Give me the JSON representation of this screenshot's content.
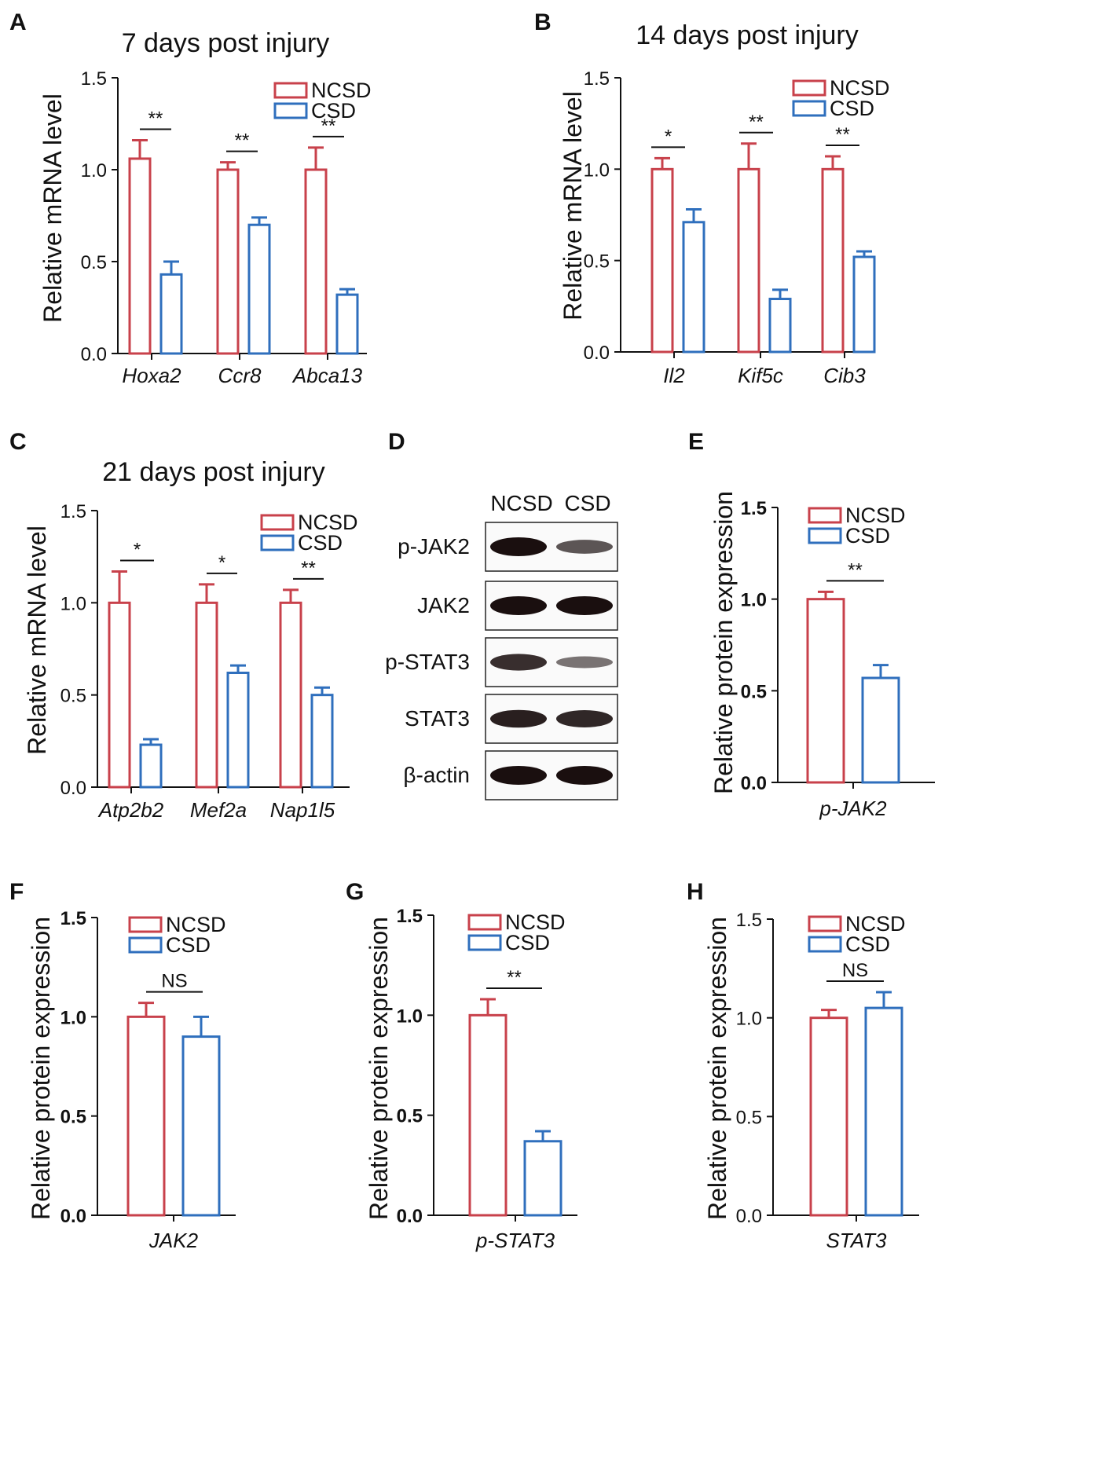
{
  "colors": {
    "ncsd": "#c8414b",
    "csd": "#2f6fbd",
    "axis": "#111111",
    "band": "#1a0f0f"
  },
  "chart_data": [
    {
      "letter": "A",
      "type": "bar",
      "title": "7 days post injury",
      "ylabel": "Relative mRNA level",
      "ylim": [
        0,
        1.5
      ],
      "yticks": [
        "0.0",
        "0.5",
        "1.0",
        "1.5"
      ],
      "tick_bold": false,
      "categories": [
        "Hoxa2",
        "Ccr8",
        "Abca13"
      ],
      "series": [
        {
          "name": "NCSD",
          "values": [
            1.06,
            1.0,
            1.0
          ],
          "errors": [
            0.1,
            0.04,
            0.12
          ]
        },
        {
          "name": "CSD",
          "values": [
            0.43,
            0.7,
            0.32
          ],
          "errors": [
            0.07,
            0.04,
            0.03
          ]
        }
      ],
      "significance": [
        "**",
        "**",
        "**"
      ],
      "legend": "top-right"
    },
    {
      "letter": "B",
      "type": "bar",
      "title": "14 days post injury",
      "ylabel": "Relative mRNA level",
      "ylim": [
        0,
        1.5
      ],
      "yticks": [
        "0.0",
        "0.5",
        "1.0",
        "1.5"
      ],
      "tick_bold": false,
      "categories": [
        "Il2",
        "Kif5c",
        "Cib3"
      ],
      "series": [
        {
          "name": "NCSD",
          "values": [
            1.0,
            1.0,
            1.0
          ],
          "errors": [
            0.06,
            0.14,
            0.07
          ]
        },
        {
          "name": "CSD",
          "values": [
            0.71,
            0.29,
            0.52
          ],
          "errors": [
            0.07,
            0.05,
            0.03
          ]
        }
      ],
      "significance": [
        "*",
        "**",
        "**"
      ],
      "legend": "top-right"
    },
    {
      "letter": "C",
      "type": "bar",
      "title": "21 days post injury",
      "ylabel": "Relative mRNA level",
      "ylim": [
        0,
        1.5
      ],
      "yticks": [
        "0.0",
        "0.5",
        "1.0",
        "1.5"
      ],
      "tick_bold": false,
      "categories": [
        "Atp2b2",
        "Mef2a",
        "Nap1l5"
      ],
      "series": [
        {
          "name": "NCSD",
          "values": [
            1.0,
            1.0,
            1.0
          ],
          "errors": [
            0.17,
            0.1,
            0.07
          ]
        },
        {
          "name": "CSD",
          "values": [
            0.23,
            0.62,
            0.5
          ],
          "errors": [
            0.03,
            0.04,
            0.04
          ]
        }
      ],
      "significance": [
        "*",
        "*",
        "**"
      ],
      "legend": "top-right"
    },
    {
      "letter": "E",
      "type": "bar",
      "title": "",
      "ylabel": "Relative protein expression",
      "ylim": [
        0,
        1.5
      ],
      "yticks": [
        "0.0",
        "0.5",
        "1.0",
        "1.5"
      ],
      "tick_bold": true,
      "categories": [
        "p-JAK2"
      ],
      "series": [
        {
          "name": "NCSD",
          "values": [
            1.0
          ],
          "errors": [
            0.04
          ]
        },
        {
          "name": "CSD",
          "values": [
            0.57
          ],
          "errors": [
            0.07
          ]
        }
      ],
      "significance": [
        "**"
      ],
      "legend": "top-right"
    },
    {
      "letter": "F",
      "type": "bar",
      "title": "",
      "ylabel": "Relative protein expression",
      "ylim": [
        0,
        1.5
      ],
      "yticks": [
        "0.0",
        "0.5",
        "1.0",
        "1.5"
      ],
      "tick_bold": true,
      "categories": [
        "JAK2"
      ],
      "series": [
        {
          "name": "NCSD",
          "values": [
            1.0
          ],
          "errors": [
            0.07
          ]
        },
        {
          "name": "CSD",
          "values": [
            0.9
          ],
          "errors": [
            0.1
          ]
        }
      ],
      "significance": [
        "NS"
      ],
      "legend": "top-right"
    },
    {
      "letter": "G",
      "type": "bar",
      "title": "",
      "ylabel": "Relative protein expression",
      "ylim": [
        0,
        1.5
      ],
      "yticks": [
        "0.0",
        "0.5",
        "1.0",
        "1.5"
      ],
      "tick_bold": true,
      "categories": [
        "p-STAT3"
      ],
      "series": [
        {
          "name": "NCSD",
          "values": [
            1.0
          ],
          "errors": [
            0.08
          ]
        },
        {
          "name": "CSD",
          "values": [
            0.37
          ],
          "errors": [
            0.05
          ]
        }
      ],
      "significance": [
        "**"
      ],
      "legend": "top-right"
    },
    {
      "letter": "H",
      "type": "bar",
      "title": "",
      "ylabel": "Relative protein expression",
      "ylim": [
        0,
        1.5
      ],
      "yticks": [
        "0.0",
        "0.5",
        "1.0",
        "1.5"
      ],
      "tick_bold": false,
      "categories": [
        "STAT3"
      ],
      "series": [
        {
          "name": "NCSD",
          "values": [
            1.0
          ],
          "errors": [
            0.04
          ]
        },
        {
          "name": "CSD",
          "values": [
            1.05
          ],
          "errors": [
            0.08
          ]
        }
      ],
      "significance": [
        "NS"
      ],
      "legend": "top-right"
    }
  ],
  "blot": {
    "letter": "D",
    "lanes": [
      "NCSD",
      "CSD"
    ],
    "rows": [
      {
        "label": "p-JAK2",
        "intensity": [
          1.0,
          0.55
        ]
      },
      {
        "label": "JAK2",
        "intensity": [
          1.0,
          1.0
        ]
      },
      {
        "label": "p-STAT3",
        "intensity": [
          0.8,
          0.35
        ]
      },
      {
        "label": "STAT3",
        "intensity": [
          0.9,
          0.85
        ]
      },
      {
        "label": "β-actin",
        "intensity": [
          1.0,
          1.0
        ]
      }
    ]
  }
}
